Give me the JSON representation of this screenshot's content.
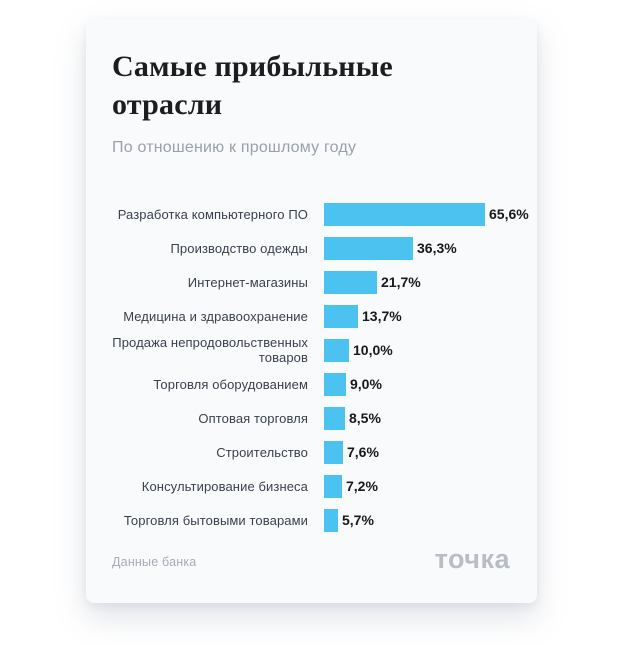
{
  "page": {
    "title": "Самые прибыльные отрасли",
    "subtitle": "По отношению к прошлому году"
  },
  "footer": {
    "source": "Данные банка",
    "brand": "точка"
  },
  "colors": {
    "bar": "#4cc2f1",
    "card_bg": "#f9fafb",
    "title": "#1b1d20",
    "subtitle": "#9aa1ab",
    "category": "#3a414d",
    "value": "#17191c",
    "source": "#a7acb5",
    "brand": "#b9bdc5"
  },
  "chart_data": {
    "type": "bar",
    "orientation": "horizontal",
    "title": "Самые прибыльные отрасли",
    "subtitle": "По отношению к прошлому году",
    "categories": [
      "Разработка компьютерного ПО",
      "Производство одежды",
      "Интернет-магазины",
      "Медицина и здравоохранение",
      "Продажа непродовольственных товаров",
      "Торговля оборудованием",
      "Оптовая торговля",
      "Строительство",
      "Консультирование бизнеса",
      "Торговля бытовыми товарами"
    ],
    "values": [
      65.6,
      36.3,
      21.7,
      13.7,
      10.0,
      9.0,
      8.5,
      7.6,
      7.2,
      5.7
    ],
    "value_labels": [
      "65,6%",
      "36,3%",
      "21,7%",
      "13,7%",
      "10,0%",
      "9,0%",
      "8,5%",
      "7,6%",
      "7,2%",
      "5,7%"
    ],
    "unit": "%",
    "xlim": [
      0,
      70
    ],
    "grid": false,
    "legend": false,
    "value_labels_position": "end-of-bar",
    "source": "Данные банка"
  }
}
